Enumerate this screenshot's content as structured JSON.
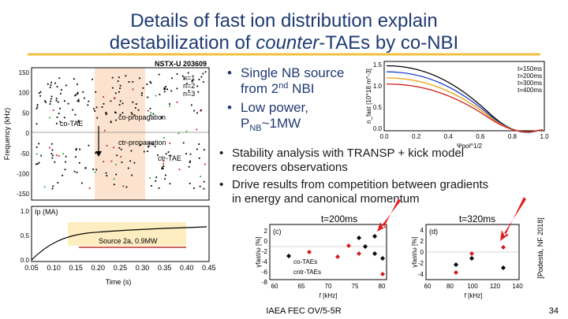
{
  "title": {
    "line1": "Details of fast ion distribution explain",
    "line2_pre": "destabilization of ",
    "line2_em": "counter",
    "line2_post": "-TAEs by co-NBI"
  },
  "bullets_top": [
    {
      "line1": "Single NB source",
      "line2_pre": "from 2",
      "line2_sup": "nd",
      "line2_post": " NBI"
    },
    {
      "line1": "Low power,",
      "line2_pre": "P",
      "line2_sub": "NB",
      "line2_post": "~1MW"
    }
  ],
  "bullets_mid": [
    [
      "Stability analysis with TRANSP + kick model",
      "recovers observations"
    ],
    [
      "Drive results from competition between gradients",
      "in energy and canonical momentum"
    ]
  ],
  "spectrogram": {
    "shot": "NSTX-U 203609",
    "ylabel": "Frequency (kHz)",
    "yticks": [
      "150",
      "100",
      "50",
      "0",
      "-50",
      "-100",
      "-150"
    ],
    "modes": [
      "n=1",
      "n=2",
      "n=3"
    ],
    "labels": {
      "co_tae": "co-TAE",
      "co_prop": "co-propagation",
      "ctr_prop": "ctr-propagation",
      "ctr_tae": "ctr-TAE"
    }
  },
  "current": {
    "label": "Ip (MA)",
    "yticks": [
      "1.0",
      "0.5",
      "0.0"
    ],
    "xticks": [
      "0.05",
      "0.10",
      "0.15",
      "0.20",
      "0.25",
      "0.30",
      "0.35",
      "0.40",
      "0.45"
    ],
    "xlabel": "Time (s)",
    "source": "Source 2a, 0.9MW"
  },
  "profile": {
    "ylabel": "n_fast [10^18 m^-3]",
    "yticks": [
      "1.5",
      "1.0",
      "0.5",
      "0.0"
    ],
    "xticks": [
      "0.0",
      "0.2",
      "0.4",
      "0.6",
      "0.8",
      "1.0"
    ],
    "xlabel": "Ψpol^1/2",
    "legend": [
      "t=150ms",
      "t=200ms",
      "t=300ms",
      "t=400ms"
    ]
  },
  "stability": {
    "ylabel": "γfast/ω [%]",
    "xlabel": "f [kHz]",
    "left": {
      "tag": "(c)",
      "time": "t=200ms",
      "yticks": [
        "2",
        "0",
        "-2",
        "-4",
        "-6",
        "-8"
      ],
      "xticks": [
        "60",
        "65",
        "70",
        "75",
        "80"
      ],
      "legend": [
        "co-TAEs",
        "cntr-TAEs"
      ]
    },
    "right": {
      "tag": "(d)",
      "time": "t=320ms",
      "yticks": [
        "4",
        "2",
        "0",
        "-2",
        "-4"
      ],
      "xticks": [
        "60",
        "80",
        "100",
        "120",
        "140"
      ]
    }
  },
  "citation": "[Podestà, NF 2018]",
  "footer": "IAEA FEC OV/5-5R",
  "page": "34"
}
